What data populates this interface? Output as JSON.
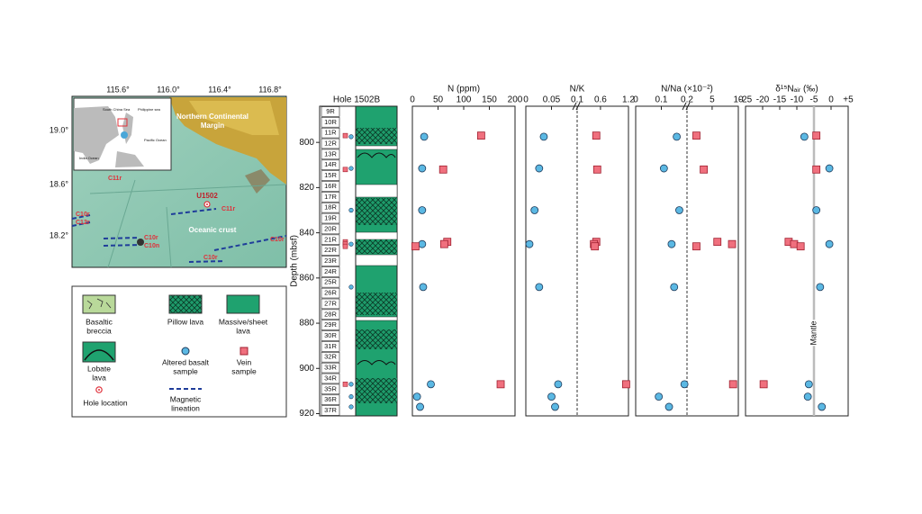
{
  "map": {
    "lon_ticks": [
      "115.6°",
      "116.0°",
      "116.4°",
      "116.8°"
    ],
    "lat_ticks": [
      "19.0°",
      "18.6°",
      "18.2°"
    ],
    "margin_label": [
      "Northern Continental",
      "Margin"
    ],
    "site_label": "U1502",
    "crust_label": "Oceanic crust",
    "lineation_labels": [
      "C11r",
      "C11r",
      "C10r",
      "C12r",
      "C10r",
      "C10n",
      "C10r",
      "C10r"
    ],
    "inset_labels": [
      "South China Sea",
      "Philippine sea",
      "Pacific Ocean",
      "India Ocean"
    ]
  },
  "legend": {
    "items": [
      [
        "Basaltic",
        "breccia"
      ],
      [
        "Pillow lava"
      ],
      [
        "Massive/sheet",
        "lava"
      ],
      [
        "Lobate",
        "lava"
      ],
      [
        "Altered basalt",
        "sample"
      ],
      [
        "Vein",
        "sample"
      ],
      [
        "Hole location"
      ],
      [
        "Magnetic",
        "lineation"
      ]
    ]
  },
  "core_log": {
    "title": "Hole 1502B",
    "ylabel": "Depth (mbsf)",
    "ylim": [
      784,
      921
    ],
    "yticks": [
      800,
      820,
      840,
      860,
      880,
      900,
      920
    ],
    "cores": [
      "9R",
      "10R",
      "11R",
      "12R",
      "13R",
      "14R",
      "15R",
      "16R",
      "17R",
      "18R",
      "19R",
      "20R",
      "21R",
      "22R",
      "23R",
      "24R",
      "25R",
      "26R",
      "27R",
      "28R",
      "29R",
      "30R",
      "31R",
      "32R",
      "33R",
      "34R",
      "35R",
      "36R",
      "37R"
    ]
  },
  "chart_data": [
    {
      "type": "scatter",
      "xlabel": "N (ppm)",
      "xlim": [
        0,
        200
      ],
      "xticks": [
        0,
        50,
        100,
        150,
        200
      ],
      "ylim": [
        784,
        921
      ],
      "series": [
        {
          "color": "#5bb8e3",
          "marker": "circle",
          "x": [
            23,
            19,
            19,
            19,
            21,
            36,
            9,
            15
          ],
          "y": [
            797.5,
            811.5,
            830,
            845,
            864,
            907,
            912.5,
            917
          ]
        },
        {
          "color": "#f0707e",
          "marker": "square",
          "x": [
            134,
            60,
            68,
            62,
            6,
            172
          ],
          "y": [
            797,
            812,
            844,
            845,
            846,
            907
          ]
        }
      ]
    },
    {
      "type": "scatter",
      "xlabel": "N/K",
      "xlim": [
        0,
        1.2
      ],
      "x_break": 0.1,
      "xticks": [
        0,
        0.05,
        0.1,
        0.6,
        1.2
      ],
      "ylim": [
        784,
        921
      ],
      "series": [
        {
          "color": "#5bb8e3",
          "marker": "circle",
          "x": [
            0.035,
            0.026,
            0.017,
            0.007,
            0.026,
            0.063,
            0.05,
            0.057
          ],
          "y": [
            797.5,
            811.5,
            830,
            845,
            864,
            907,
            912.5,
            917
          ]
        },
        {
          "color": "#f0707e",
          "marker": "square",
          "x": [
            0.51,
            0.53,
            0.51,
            0.46,
            0.48,
            1.15
          ],
          "y": [
            797,
            812,
            844,
            845,
            846,
            907
          ]
        }
      ]
    },
    {
      "type": "scatter",
      "xlabel": "N/Na (×10⁻²)",
      "xlim": [
        0,
        10
      ],
      "x_break": 0.2,
      "xticks": [
        0,
        0.1,
        0.2,
        5,
        10
      ],
      "ylim": [
        784,
        921
      ],
      "series": [
        {
          "color": "#5bb8e3",
          "marker": "circle",
          "x": [
            0.16,
            0.11,
            0.17,
            0.14,
            0.15,
            0.19,
            0.09,
            0.13
          ],
          "y": [
            797.5,
            811.5,
            830,
            845,
            864,
            907,
            912.5,
            917
          ]
        },
        {
          "color": "#f0707e",
          "marker": "square",
          "x": [
            2.0,
            3.4,
            6.0,
            8.8,
            2.0,
            9.0
          ],
          "y": [
            797,
            812,
            844,
            845,
            846,
            907
          ]
        }
      ]
    },
    {
      "type": "scatter",
      "xlabel": "δ¹⁵Nₐᵢᵣ (‰)",
      "xlim": [
        -25,
        5
      ],
      "xticks": [
        -25,
        -20,
        -15,
        -10,
        -5,
        0,
        {
          "value": 5,
          "label": "+5"
        }
      ],
      "ylim": [
        784,
        921
      ],
      "reference_line": {
        "value": -5,
        "label": "Mantle"
      },
      "series": [
        {
          "color": "#5bb8e3",
          "marker": "circle",
          "x": [
            -7.8,
            -0.5,
            -4.3,
            -0.5,
            -3.2,
            -6.5,
            -6.8,
            -2.7
          ],
          "y": [
            797.5,
            811.5,
            830,
            845,
            864,
            907,
            912.5,
            917
          ]
        },
        {
          "color": "#f0707e",
          "marker": "square",
          "x": [
            -4.3,
            -4.3,
            -12.4,
            -10.8,
            -8.9,
            -19.7
          ],
          "y": [
            797,
            812,
            844,
            845,
            846,
            907
          ]
        }
      ]
    }
  ]
}
